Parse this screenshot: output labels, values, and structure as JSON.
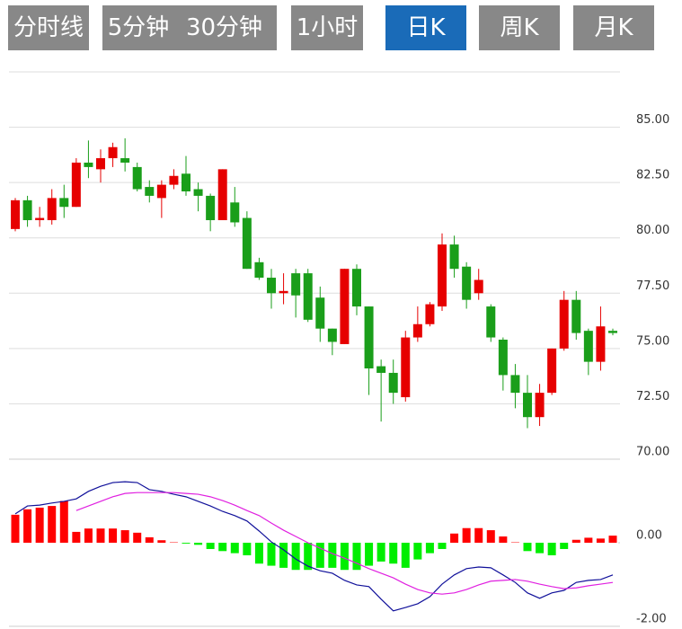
{
  "tabs": [
    "分时线",
    "5分钟",
    "30分钟",
    "1小时",
    "日K",
    "周K",
    "月K"
  ],
  "active_tab": 4,
  "chart_data": {
    "type": "candlestick",
    "up_color": "#e60000",
    "down_color": "#1a9e1a",
    "ylim": [
      70,
      87.5
    ],
    "yticks": [
      {
        "value": 70,
        "label": "70.00"
      },
      {
        "value": 72.5,
        "label": "72.50"
      },
      {
        "value": 75,
        "label": "75.00"
      },
      {
        "value": 77.5,
        "label": "77.50"
      },
      {
        "value": 80,
        "label": "80.00"
      },
      {
        "value": 82.5,
        "label": "82.50"
      },
      {
        "value": 85,
        "label": "85.00"
      }
    ],
    "grid": true,
    "open": [
      80.4,
      81.7,
      80.8,
      80.8,
      81.8,
      81.4,
      83.4,
      83.1,
      83.6,
      83.6,
      83.2,
      82.3,
      81.8,
      82.4,
      82.9,
      82.2,
      81.9,
      80.8,
      81.6,
      80.9,
      78.9,
      78.2,
      77.5,
      78.4,
      78.4,
      77.3,
      75.9,
      75.2,
      78.6,
      76.9,
      74.2,
      73.9,
      72.8,
      75.5,
      76.1,
      76.9,
      79.7,
      78.7,
      77.5,
      76.9,
      75.4,
      73.8,
      73.0,
      71.9,
      73.0,
      75.0,
      77.2,
      75.8,
      74.4,
      75.8
    ],
    "high": [
      81.8,
      81.9,
      81.4,
      82.2,
      82.4,
      83.6,
      84.4,
      84.0,
      84.3,
      84.5,
      83.4,
      82.6,
      82.6,
      83.1,
      83.7,
      82.5,
      82.0,
      83.1,
      82.3,
      81.2,
      79.1,
      78.6,
      78.4,
      78.6,
      78.6,
      77.8,
      75.9,
      78.6,
      78.8,
      76.9,
      74.5,
      74.5,
      75.8,
      76.9,
      77.1,
      80.2,
      80.1,
      78.9,
      78.6,
      77.0,
      75.5,
      74.3,
      73.8,
      73.4,
      75.0,
      77.6,
      77.6,
      75.9,
      76.9,
      75.9
    ],
    "low": [
      80.3,
      80.5,
      80.5,
      80.6,
      80.9,
      81.4,
      82.7,
      82.5,
      83.2,
      83.0,
      82.1,
      81.6,
      80.9,
      82.2,
      81.9,
      81.2,
      80.3,
      80.8,
      80.5,
      78.6,
      78.1,
      76.8,
      77.0,
      76.4,
      76.2,
      75.3,
      74.7,
      75.2,
      76.5,
      72.9,
      71.7,
      72.5,
      72.6,
      75.3,
      76.0,
      76.7,
      78.2,
      76.8,
      77.2,
      75.3,
      73.1,
      72.3,
      71.4,
      71.5,
      72.9,
      74.9,
      75.4,
      73.8,
      74.0,
      75.6
    ],
    "close": [
      81.7,
      80.8,
      80.9,
      81.8,
      81.4,
      83.4,
      83.2,
      83.6,
      84.1,
      83.4,
      82.2,
      81.9,
      82.4,
      82.8,
      82.1,
      81.9,
      80.8,
      83.1,
      80.7,
      78.6,
      78.2,
      77.5,
      77.6,
      77.4,
      76.3,
      75.9,
      75.3,
      78.6,
      76.9,
      74.1,
      73.9,
      73.0,
      75.5,
      76.1,
      77.0,
      79.7,
      78.6,
      77.2,
      78.1,
      75.5,
      73.8,
      73.0,
      71.9,
      73.0,
      75.0,
      77.2,
      75.7,
      74.4,
      76.0,
      75.7
    ],
    "macd": {
      "ylim": [
        -2,
        2
      ],
      "yticks": [
        {
          "value": 0,
          "label": "0.00"
        },
        {
          "value": -2,
          "label": "-2.00"
        }
      ],
      "histogram": {
        "up_color": "#ff0000",
        "down_color": "#00ee00",
        "values": [
          0.67,
          0.8,
          0.84,
          0.88,
          1.0,
          0.26,
          0.34,
          0.34,
          0.34,
          0.3,
          0.24,
          0.13,
          0.06,
          0.01,
          -0.02,
          -0.05,
          -0.15,
          -0.2,
          -0.25,
          -0.3,
          -0.5,
          -0.55,
          -0.6,
          -0.65,
          -0.65,
          -0.6,
          -0.6,
          -0.65,
          -0.65,
          -0.55,
          -0.45,
          -0.5,
          -0.6,
          -0.4,
          -0.25,
          -0.15,
          0.22,
          0.35,
          0.35,
          0.3,
          0.15,
          0.01,
          -0.2,
          -0.25,
          -0.3,
          -0.15,
          0.07,
          0.12,
          0.1,
          0.17
        ]
      },
      "dif": {
        "color": "#10109a",
        "values": [
          0.69,
          0.88,
          0.9,
          0.95,
          0.99,
          1.05,
          1.23,
          1.35,
          1.44,
          1.46,
          1.44,
          1.27,
          1.23,
          1.16,
          1.1,
          0.99,
          0.88,
          0.75,
          0.65,
          0.52,
          0.28,
          0.02,
          -0.17,
          -0.39,
          -0.56,
          -0.67,
          -0.73,
          -0.9,
          -1.01,
          -1.05,
          -1.35,
          -1.63,
          -1.55,
          -1.46,
          -1.29,
          -0.99,
          -0.77,
          -0.62,
          -0.58,
          -0.6,
          -0.77,
          -0.95,
          -1.2,
          -1.33,
          -1.2,
          -1.14,
          -0.95,
          -0.9,
          -0.88,
          -0.77
        ]
      },
      "dea": {
        "color": "#e020e0",
        "values": [
          null,
          null,
          null,
          null,
          null,
          0.77,
          0.88,
          0.99,
          1.1,
          1.18,
          1.2,
          1.2,
          1.2,
          1.2,
          1.18,
          1.16,
          1.1,
          1.01,
          0.9,
          0.77,
          0.65,
          0.47,
          0.3,
          0.15,
          0,
          -0.13,
          -0.26,
          -0.37,
          -0.49,
          -0.62,
          -0.73,
          -0.84,
          -0.99,
          -1.12,
          -1.2,
          -1.23,
          -1.2,
          -1.12,
          -1.01,
          -0.92,
          -0.9,
          -0.88,
          -0.92,
          -0.99,
          -1.05,
          -1.1,
          -1.08,
          -1.03,
          -0.99,
          -0.95
        ]
      }
    }
  }
}
